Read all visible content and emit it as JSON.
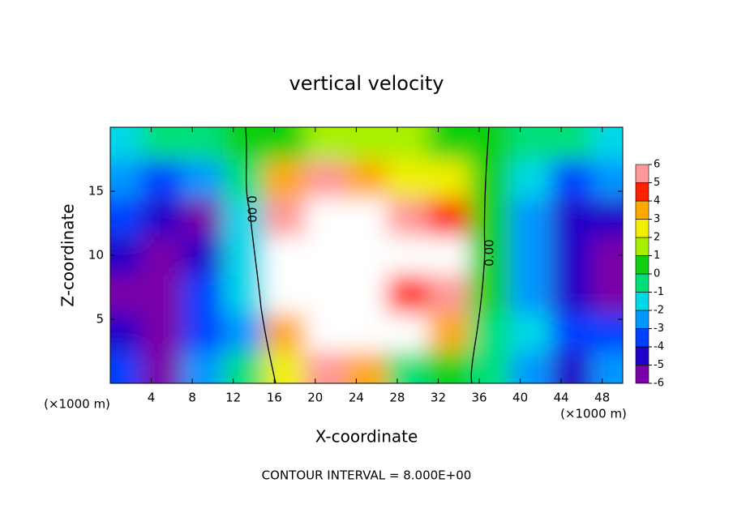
{
  "chart_data": {
    "type": "contour",
    "title": "vertical velocity",
    "xlabel": "X-coordinate",
    "ylabel": "Z-coordinate",
    "x_unit": "(×1000 m)",
    "annotation": "CONTOUR INTERVAL = 8.000E+00",
    "contour_labels": [
      "0.00",
      "0.00"
    ],
    "xlim": [
      0,
      50
    ],
    "ylim": [
      0,
      20
    ],
    "xticks": [
      4,
      8,
      12,
      16,
      20,
      24,
      28,
      32,
      36,
      40,
      44,
      48
    ],
    "yticks": [
      5,
      10,
      15
    ],
    "x": [
      1,
      5,
      9,
      13,
      17,
      21,
      25,
      29,
      33,
      37,
      41,
      45,
      49
    ],
    "y": [
      1,
      4,
      7,
      10,
      13,
      16,
      19
    ],
    "z": [
      [
        -4,
        -6,
        -3,
        -1,
        2,
        5,
        3,
        -1,
        0,
        -1,
        -3,
        -5,
        -3
      ],
      [
        -5,
        -7,
        -4,
        -3,
        3,
        8,
        7,
        7,
        3,
        -1,
        -2,
        -4,
        -4
      ],
      [
        -6,
        -7,
        -4,
        -2,
        6,
        8,
        8,
        4,
        5,
        0,
        -3,
        -5,
        -7
      ],
      [
        -5,
        -6,
        -5,
        -2,
        6,
        8,
        8,
        6,
        7,
        0,
        -3,
        -5,
        -7
      ],
      [
        -4,
        -5,
        -6,
        -2,
        5,
        8,
        6,
        5,
        4,
        0,
        -3,
        -5,
        -5
      ],
      [
        -3,
        -4,
        -3,
        -1,
        3,
        5,
        3,
        2.5,
        2,
        0.5,
        -2,
        -4,
        -3
      ],
      [
        -1.5,
        -1,
        -0.5,
        0,
        0.5,
        1,
        1,
        1,
        0.5,
        0,
        -0.5,
        -1,
        -1.5
      ]
    ],
    "levels": [
      -6,
      -5,
      -4,
      -3,
      -2,
      -1,
      0,
      1,
      2,
      3,
      4,
      5,
      6
    ],
    "level_colors": [
      "#7a00a8",
      "#2000c8",
      "#0040ff",
      "#0098ff",
      "#00d8e8",
      "#00e07a",
      "#10d010",
      "#a8f000",
      "#f0f000",
      "#ffa800",
      "#ff2000",
      "#ff9898"
    ],
    "above_color": "#ffffff"
  }
}
